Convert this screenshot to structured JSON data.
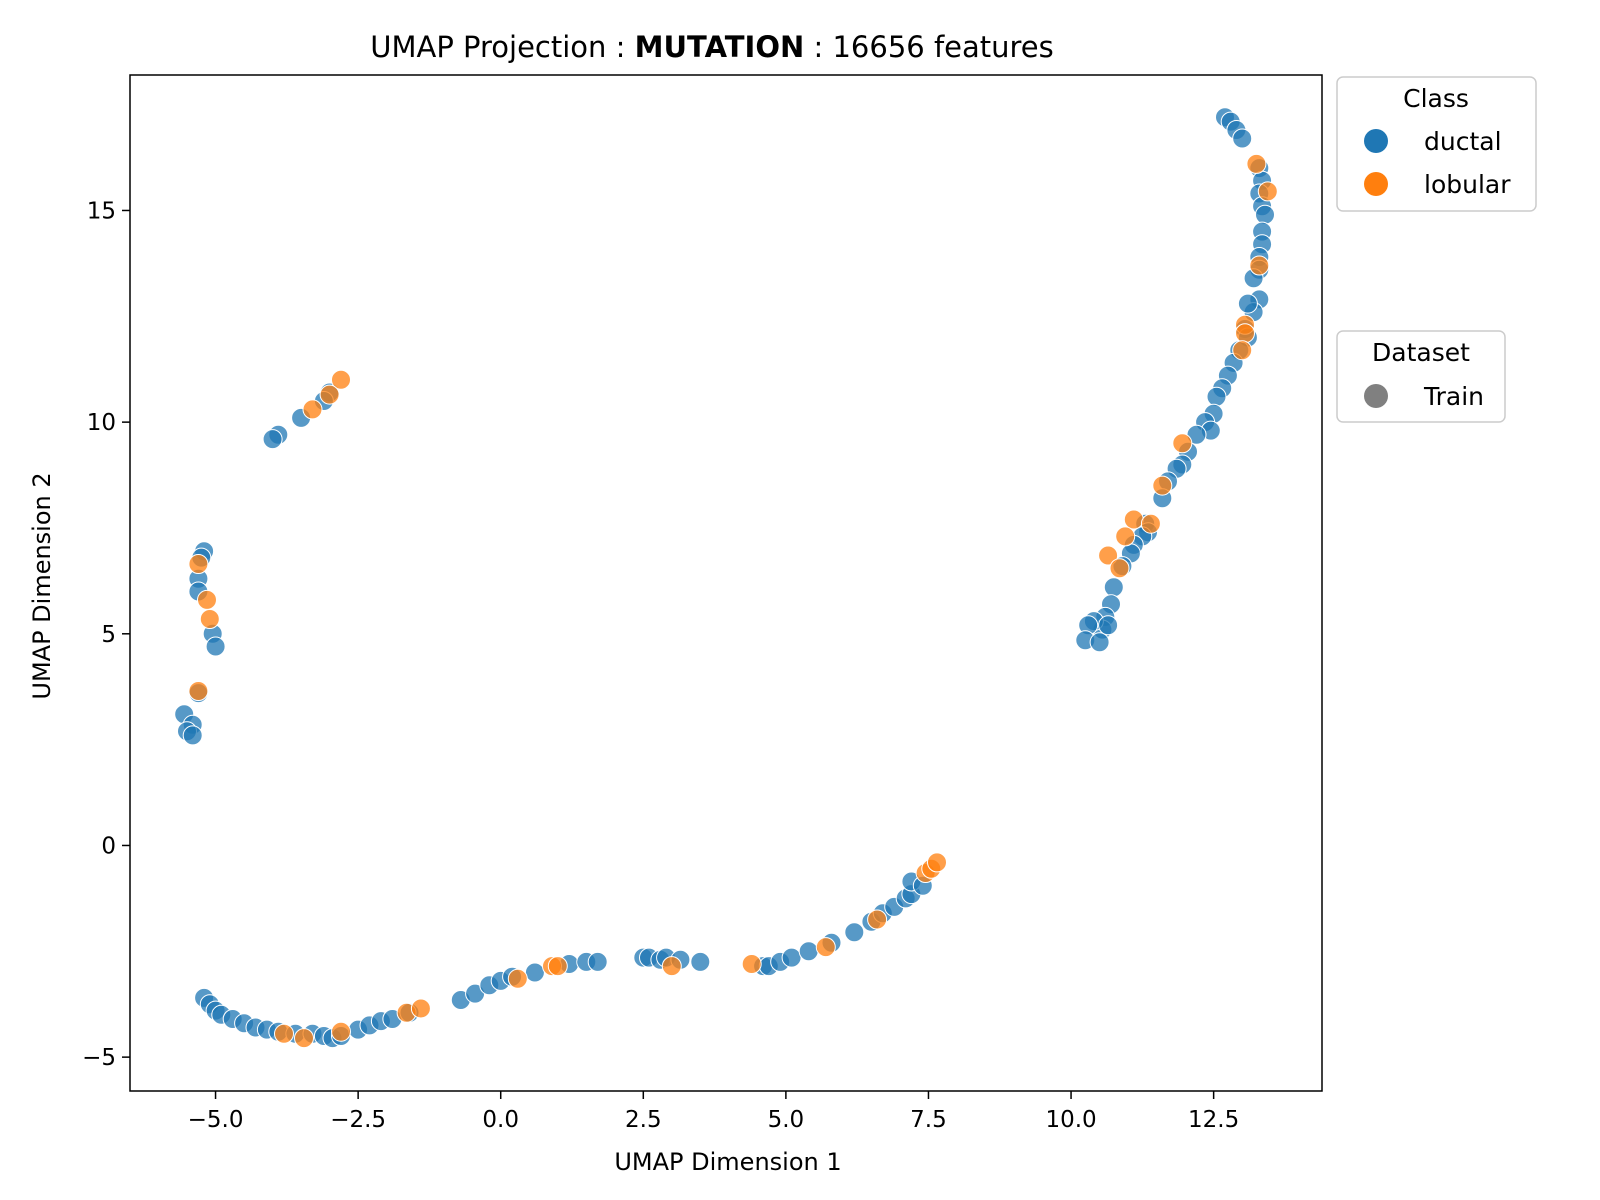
{
  "title": {
    "prefix": "UMAP Projection : ",
    "bold": "MUTATION",
    "suffix": " : 16656 features"
  },
  "chart_data": {
    "type": "scatter",
    "xlabel": "UMAP Dimension 1",
    "ylabel": "UMAP Dimension 2",
    "xlim": [
      -6.5,
      14.4
    ],
    "ylim": [
      -5.8,
      18.2
    ],
    "xticks": [
      "−5.0",
      "−2.5",
      "0.0",
      "2.5",
      "5.0",
      "7.5",
      "10.0",
      "12.5"
    ],
    "yticks": [
      "−5",
      "0",
      "5",
      "10",
      "15"
    ],
    "grid": false,
    "legends": [
      {
        "title": "Class",
        "placement": "outside-top-right",
        "entries": [
          {
            "label": "ductal",
            "color": "#1f77b4"
          },
          {
            "label": "lobular",
            "color": "#ff7f0e"
          }
        ]
      },
      {
        "title": "Dataset",
        "placement": "outside-right",
        "entries": [
          {
            "label": "Train",
            "color": "#808080"
          }
        ]
      }
    ],
    "series": [
      {
        "name": "ductal",
        "color": "#1f77b4",
        "points": [
          [
            12.7,
            17.2
          ],
          [
            12.8,
            17.1
          ],
          [
            12.9,
            16.9
          ],
          [
            13.0,
            16.7
          ],
          [
            13.3,
            16.0
          ],
          [
            13.35,
            15.7
          ],
          [
            13.3,
            15.4
          ],
          [
            13.35,
            15.1
          ],
          [
            13.4,
            14.9
          ],
          [
            13.35,
            14.5
          ],
          [
            13.35,
            14.2
          ],
          [
            13.3,
            13.9
          ],
          [
            13.3,
            13.6
          ],
          [
            13.2,
            13.4
          ],
          [
            13.3,
            12.9
          ],
          [
            13.2,
            12.6
          ],
          [
            13.1,
            12.8
          ],
          [
            13.05,
            12.2
          ],
          [
            13.1,
            12.0
          ],
          [
            12.95,
            11.7
          ],
          [
            12.85,
            11.4
          ],
          [
            12.75,
            11.1
          ],
          [
            12.65,
            10.8
          ],
          [
            12.55,
            10.6
          ],
          [
            12.5,
            10.2
          ],
          [
            12.35,
            10.0
          ],
          [
            12.45,
            9.8
          ],
          [
            12.2,
            9.7
          ],
          [
            12.05,
            9.3
          ],
          [
            11.95,
            9.0
          ],
          [
            11.85,
            8.9
          ],
          [
            11.7,
            8.6
          ],
          [
            11.6,
            8.2
          ],
          [
            11.3,
            7.6
          ],
          [
            11.35,
            7.4
          ],
          [
            11.25,
            7.3
          ],
          [
            11.1,
            7.1
          ],
          [
            11.05,
            6.9
          ],
          [
            10.9,
            6.6
          ],
          [
            10.75,
            6.1
          ],
          [
            10.7,
            5.7
          ],
          [
            10.6,
            5.4
          ],
          [
            10.55,
            5.1
          ],
          [
            10.4,
            5.3
          ],
          [
            10.3,
            5.2
          ],
          [
            10.25,
            4.85
          ],
          [
            10.5,
            4.8
          ],
          [
            10.65,
            5.2
          ],
          [
            -3.0,
            10.7
          ],
          [
            -3.1,
            10.5
          ],
          [
            -3.5,
            10.1
          ],
          [
            -3.9,
            9.7
          ],
          [
            -4.0,
            9.6
          ],
          [
            -5.2,
            6.95
          ],
          [
            -5.25,
            6.8
          ],
          [
            -5.3,
            6.3
          ],
          [
            -5.3,
            6.0
          ],
          [
            -5.05,
            5.0
          ],
          [
            -5.0,
            4.7
          ],
          [
            -5.3,
            3.6
          ],
          [
            -5.55,
            3.1
          ],
          [
            -5.4,
            2.85
          ],
          [
            -5.5,
            2.7
          ],
          [
            -5.4,
            2.6
          ],
          [
            -5.2,
            -3.6
          ],
          [
            -5.1,
            -3.75
          ],
          [
            -5.0,
            -3.9
          ],
          [
            -4.9,
            -4.0
          ],
          [
            -4.7,
            -4.1
          ],
          [
            -4.5,
            -4.2
          ],
          [
            -4.3,
            -4.3
          ],
          [
            -4.1,
            -4.35
          ],
          [
            -3.9,
            -4.4
          ],
          [
            -3.6,
            -4.45
          ],
          [
            -3.3,
            -4.45
          ],
          [
            -3.1,
            -4.5
          ],
          [
            -2.95,
            -4.55
          ],
          [
            -2.8,
            -4.5
          ],
          [
            -2.5,
            -4.35
          ],
          [
            -2.3,
            -4.25
          ],
          [
            -2.1,
            -4.15
          ],
          [
            -1.9,
            -4.1
          ],
          [
            -1.6,
            -3.95
          ],
          [
            -0.7,
            -3.65
          ],
          [
            -0.45,
            -3.5
          ],
          [
            -0.2,
            -3.3
          ],
          [
            0.0,
            -3.2
          ],
          [
            0.2,
            -3.1
          ],
          [
            0.6,
            -3.0
          ],
          [
            1.2,
            -2.8
          ],
          [
            1.5,
            -2.75
          ],
          [
            1.7,
            -2.75
          ],
          [
            2.5,
            -2.65
          ],
          [
            2.6,
            -2.65
          ],
          [
            2.8,
            -2.7
          ],
          [
            2.9,
            -2.65
          ],
          [
            3.15,
            -2.7
          ],
          [
            3.5,
            -2.75
          ],
          [
            4.6,
            -2.85
          ],
          [
            4.7,
            -2.85
          ],
          [
            4.9,
            -2.75
          ],
          [
            5.1,
            -2.65
          ],
          [
            5.4,
            -2.5
          ],
          [
            5.8,
            -2.3
          ],
          [
            6.2,
            -2.05
          ],
          [
            6.5,
            -1.8
          ],
          [
            6.7,
            -1.6
          ],
          [
            6.9,
            -1.45
          ],
          [
            7.1,
            -1.25
          ],
          [
            7.2,
            -1.15
          ],
          [
            7.2,
            -0.85
          ],
          [
            7.4,
            -0.95
          ]
        ]
      },
      {
        "name": "lobular",
        "color": "#ff7f0e",
        "points": [
          [
            13.25,
            16.1
          ],
          [
            13.45,
            15.45
          ],
          [
            13.3,
            13.7
          ],
          [
            13.05,
            12.3
          ],
          [
            13.05,
            12.1
          ],
          [
            13.0,
            11.7
          ],
          [
            11.95,
            9.5
          ],
          [
            11.6,
            8.5
          ],
          [
            11.1,
            7.7
          ],
          [
            10.95,
            7.3
          ],
          [
            10.65,
            6.85
          ],
          [
            10.85,
            6.55
          ],
          [
            11.4,
            7.6
          ],
          [
            -2.8,
            11.0
          ],
          [
            -3.3,
            10.3
          ],
          [
            -3.0,
            10.65
          ],
          [
            -5.3,
            6.65
          ],
          [
            -5.15,
            5.8
          ],
          [
            -5.1,
            5.35
          ],
          [
            -5.3,
            3.65
          ],
          [
            -3.8,
            -4.45
          ],
          [
            -3.45,
            -4.55
          ],
          [
            -2.8,
            -4.4
          ],
          [
            -1.65,
            -3.95
          ],
          [
            -1.4,
            -3.85
          ],
          [
            0.3,
            -3.15
          ],
          [
            0.9,
            -2.85
          ],
          [
            1.0,
            -2.85
          ],
          [
            3.0,
            -2.85
          ],
          [
            4.4,
            -2.8
          ],
          [
            5.7,
            -2.4
          ],
          [
            6.6,
            -1.75
          ],
          [
            7.45,
            -0.65
          ],
          [
            7.55,
            -0.55
          ],
          [
            7.65,
            -0.4
          ]
        ]
      }
    ]
  }
}
